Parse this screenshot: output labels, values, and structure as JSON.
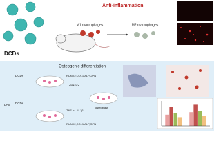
{
  "top": {
    "material": "DCDs",
    "title": "Anti-inflammation",
    "m1": "M1 macrophages",
    "m2": "M2 macrophages"
  },
  "bottom": {
    "title": "Osteogenic differentiation",
    "lps": "LPS",
    "dcds_a": "DCDs",
    "dcds_b": "DCDs",
    "cells": "rBMSCs",
    "genes_up": "RUNX2,COL1,ALP,OPN",
    "genes_down": "RUNX2,COL1,ALP,OPN",
    "cytokines": "TNF-α、IL-1β",
    "result": "osteoblast"
  },
  "inset": {
    "groups": 2,
    "series": [
      {
        "color": "#e8a0a0",
        "values": [
          18,
          22
        ]
      },
      {
        "color": "#c0504d",
        "values": [
          30,
          34
        ]
      },
      {
        "color": "#9bbb59",
        "values": [
          20,
          24
        ]
      },
      {
        "color": "#f2c080",
        "values": [
          14,
          16
        ]
      }
    ],
    "ylim": [
      0,
      40
    ]
  }
}
